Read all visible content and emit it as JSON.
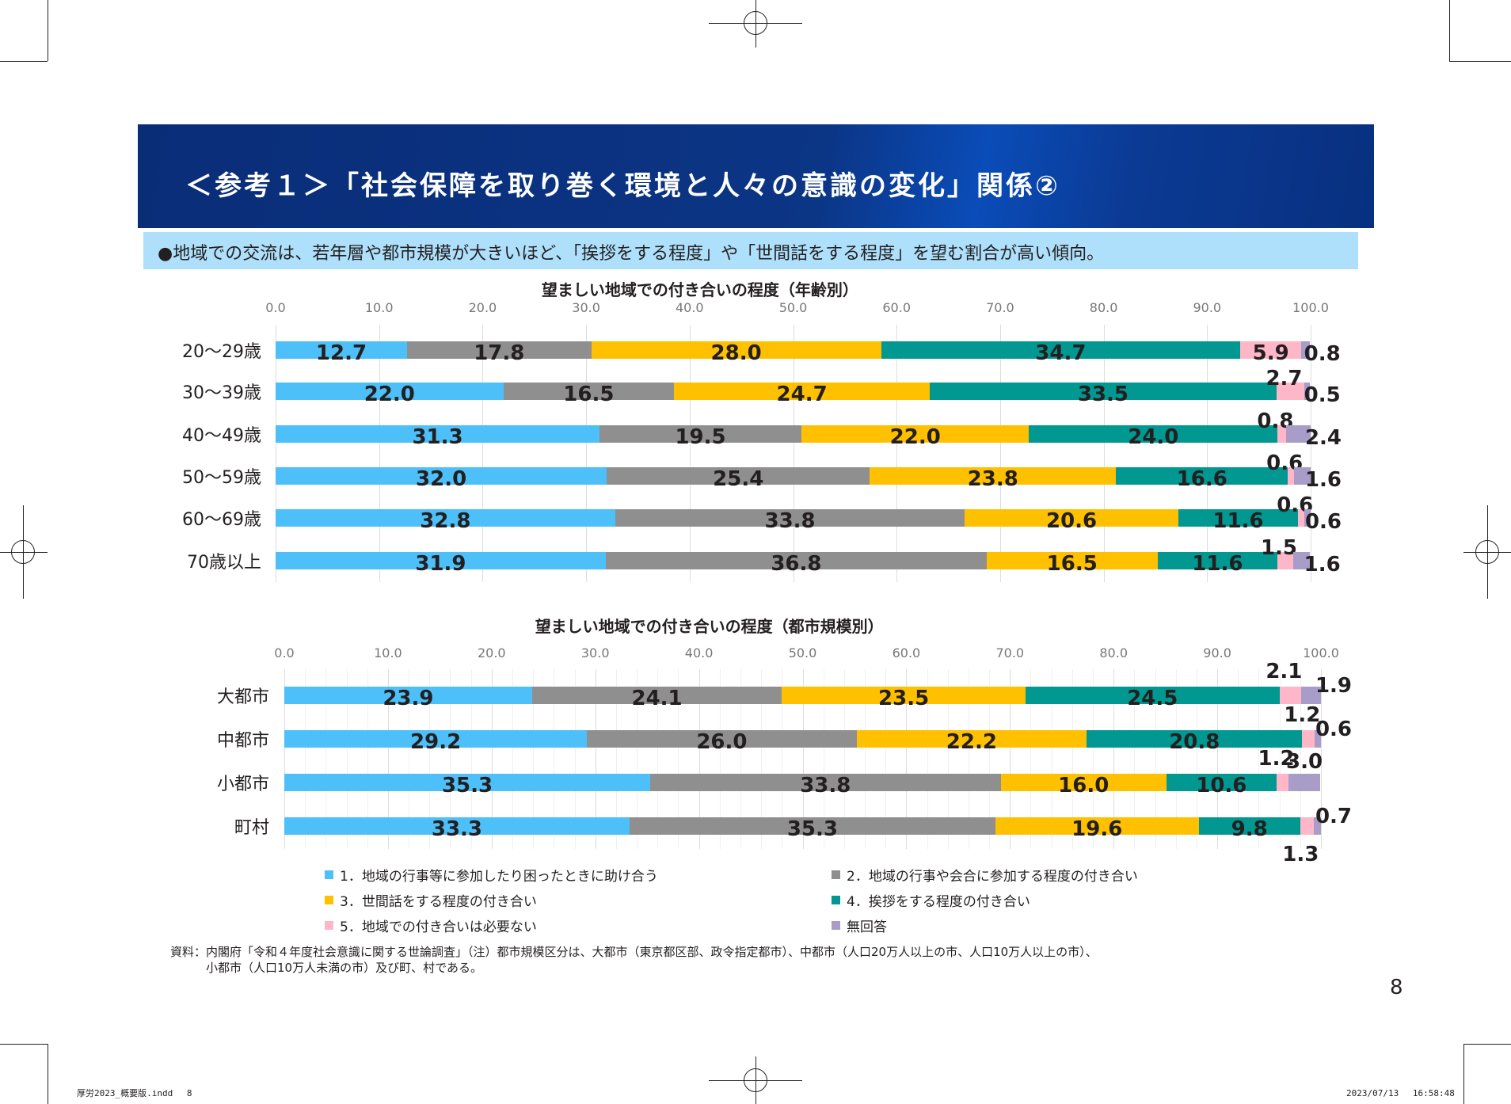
{
  "header": {
    "title": "＜参考１＞「社会保障を取り巻く環境と人々の意識の変化」関係②"
  },
  "subtitle": "●地域での交流は、若年層や都市規模が大きいほど、「挨拶をする程度」や「世間話をする程度」を望む割合が高い傾向。",
  "colors": [
    "#4dbff9",
    "#8f8f8f",
    "#ffc000",
    "#009891",
    "#ffb6c8",
    "#a89cc8"
  ],
  "legend": [
    "1．地域の行事等に参加したり困ったときに助け合う",
    "2．地域の行事や会合に参加する程度の付き合い",
    "3．世間話をする程度の付き合い",
    "4．挨拶をする程度の付き合い",
    "5．地域での付き合いは必要ない",
    "無回答"
  ],
  "chart_data": [
    {
      "type": "bar",
      "orientation": "horizontal",
      "stacked": true,
      "title": "望ましい地域での付き合いの程度（年齢別）",
      "xlim": [
        0,
        100
      ],
      "xticks": [
        "0.0",
        "10.0",
        "20.0",
        "30.0",
        "40.0",
        "50.0",
        "60.0",
        "70.0",
        "80.0",
        "90.0",
        "100.0"
      ],
      "categories": [
        "20～29歳",
        "30～39歳",
        "40～49歳",
        "50～59歳",
        "60～69歳",
        "70歳以上"
      ],
      "series": [
        {
          "name": "1．地域の行事等に参加したり困ったときに助け合う",
          "values": [
            12.7,
            22.0,
            31.3,
            32.0,
            32.8,
            31.9
          ]
        },
        {
          "name": "2．地域の行事や会合に参加する程度の付き合い",
          "values": [
            17.8,
            16.5,
            19.5,
            25.4,
            33.8,
            36.8
          ]
        },
        {
          "name": "3．世間話をする程度の付き合い",
          "values": [
            28.0,
            24.7,
            22.0,
            23.8,
            20.6,
            16.5
          ]
        },
        {
          "name": "4．挨拶をする程度の付き合い",
          "values": [
            34.7,
            33.5,
            24.0,
            16.6,
            11.6,
            11.6
          ]
        },
        {
          "name": "5．地域での付き合いは必要ない",
          "values": [
            5.9,
            2.7,
            0.8,
            0.6,
            0.6,
            1.5
          ]
        },
        {
          "name": "無回答",
          "values": [
            0.8,
            0.5,
            2.4,
            1.6,
            0.6,
            1.6
          ]
        }
      ]
    },
    {
      "type": "bar",
      "orientation": "horizontal",
      "stacked": true,
      "title": "望ましい地域での付き合いの程度（都市規模別）",
      "xlim": [
        0,
        100
      ],
      "xticks": [
        "0.0",
        "10.0",
        "20.0",
        "30.0",
        "40.0",
        "50.0",
        "60.0",
        "70.0",
        "80.0",
        "90.0",
        "100.0"
      ],
      "categories": [
        "大都市",
        "中都市",
        "小都市",
        "町村"
      ],
      "series": [
        {
          "name": "1．地域の行事等に参加したり困ったときに助け合う",
          "values": [
            23.9,
            29.2,
            35.3,
            33.3
          ]
        },
        {
          "name": "2．地域の行事や会合に参加する程度の付き合い",
          "values": [
            24.1,
            26.0,
            33.8,
            35.3
          ]
        },
        {
          "name": "3．世間話をする程度の付き合い",
          "values": [
            23.5,
            22.2,
            16.0,
            19.6
          ]
        },
        {
          "name": "4．挨拶をする程度の付き合い",
          "values": [
            24.5,
            20.8,
            10.6,
            9.8
          ]
        },
        {
          "name": "5．地域での付き合いは必要ない",
          "values": [
            2.1,
            1.2,
            1.2,
            1.3
          ]
        },
        {
          "name": "無回答",
          "values": [
            1.9,
            0.6,
            3.0,
            0.7
          ]
        }
      ]
    }
  ],
  "note": "資料：内閣府「令和４年度社会意識に関する世論調査」（注）都市規模区分は、大都市（東京都区部、政令指定都市）、中都市（人口20万人以上の市、人口10万人以上の市）、\n　　　小都市（人口10万人未満の市）及び町、村である。",
  "page_number": "8",
  "footer": {
    "left": "厚労2023_概要版.indd　 8",
    "right": "2023/07/13　 16:58:48"
  }
}
